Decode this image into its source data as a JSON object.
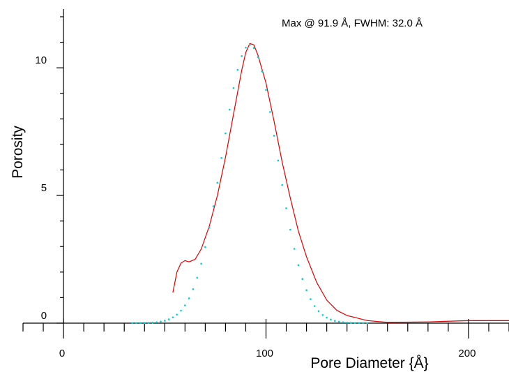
{
  "chart_data": {
    "type": "line",
    "annotation": "Max @ 91.9 Å, FWHM: 32.0 Å",
    "x_label": "Pore Diameter {Å}",
    "y_label": "Porosity",
    "xlim": [
      -20,
      220
    ],
    "ylim": [
      0,
      12.3
    ],
    "xticks": [
      0,
      100,
      200
    ],
    "yticks": [
      0,
      5,
      10
    ],
    "xminorticks": [
      -20,
      -10,
      10,
      20,
      30,
      40,
      50,
      60,
      70,
      80,
      90,
      110,
      120,
      130,
      140,
      150,
      160,
      170,
      180,
      190,
      210,
      220
    ],
    "yminorticks": [
      1,
      2,
      3,
      4,
      6,
      7,
      8,
      9,
      11,
      12
    ],
    "series": [
      {
        "color": "#e00000",
        "style": "solid",
        "x": [
          54,
          56,
          58,
          60,
          62,
          65,
          68,
          72,
          76,
          80,
          84,
          88,
          90,
          92,
          94,
          96,
          100,
          104,
          108,
          112,
          116,
          120,
          125,
          130,
          135,
          140,
          150,
          160,
          180,
          200,
          220
        ],
        "values": [
          1.2,
          2.0,
          2.35,
          2.45,
          2.4,
          2.5,
          2.9,
          3.8,
          5.0,
          6.5,
          8.2,
          9.9,
          10.6,
          10.95,
          10.9,
          10.5,
          9.4,
          7.9,
          6.3,
          4.9,
          3.6,
          2.6,
          1.6,
          0.9,
          0.5,
          0.3,
          0.1,
          0.03,
          0.05,
          0.1,
          0.1
        ]
      },
      {
        "color": "#00d0d0",
        "style": "dotted",
        "x": [
          34,
          36,
          38,
          40,
          42,
          44,
          46,
          48,
          50,
          52,
          54,
          56,
          58,
          60,
          62,
          64,
          66,
          68,
          70,
          72,
          74,
          76,
          78,
          80,
          82,
          84,
          86,
          88,
          90,
          92,
          94,
          96,
          98,
          100,
          102,
          104,
          106,
          108,
          110,
          112,
          114,
          116,
          118,
          120,
          122,
          124,
          126,
          128,
          130,
          132,
          134,
          136,
          138,
          140,
          142,
          144,
          146,
          148,
          150
        ],
        "values": [
          0.001,
          0.002,
          0.004,
          0.008,
          0.013,
          0.022,
          0.037,
          0.06,
          0.094,
          0.148,
          0.225,
          0.334,
          0.488,
          0.697,
          0.972,
          1.33,
          1.78,
          2.33,
          2.98,
          3.74,
          4.58,
          5.5,
          6.47,
          7.43,
          8.36,
          9.21,
          9.92,
          10.46,
          10.79,
          10.9,
          10.77,
          10.42,
          9.86,
          9.13,
          8.27,
          7.34,
          6.37,
          5.41,
          4.5,
          3.66,
          2.91,
          2.27,
          1.73,
          1.29,
          0.94,
          0.67,
          0.47,
          0.32,
          0.215,
          0.141,
          0.09,
          0.057,
          0.035,
          0.021,
          0.012,
          0.007,
          0.004,
          0.002,
          0.001
        ]
      }
    ]
  }
}
